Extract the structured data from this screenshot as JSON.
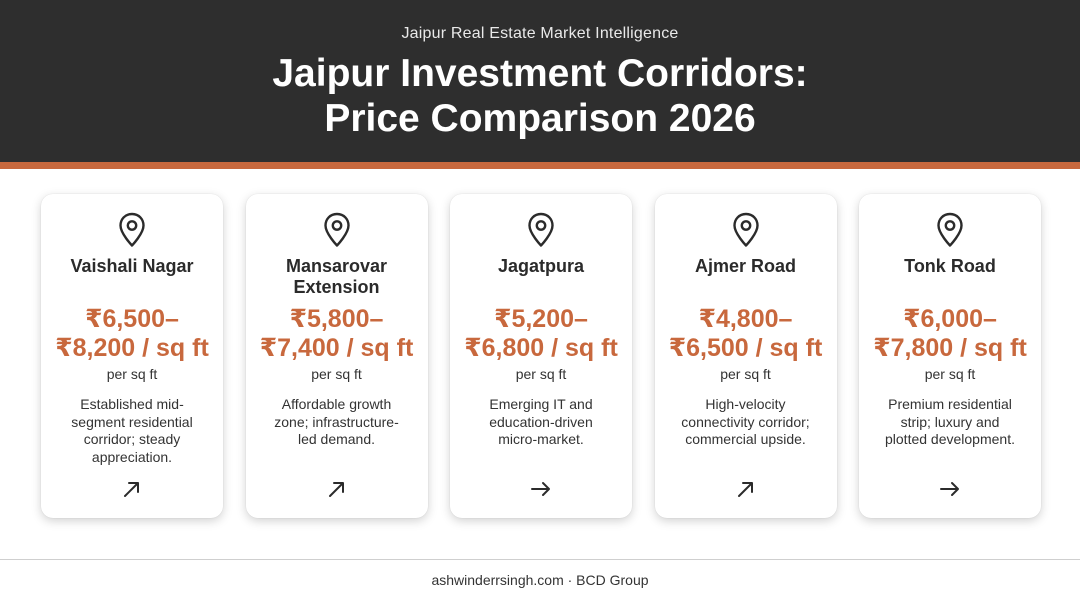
{
  "header": {
    "subtitle": "Jaipur Real Estate Market Intelligence",
    "title_line1": "Jaipur Investment Corridors:",
    "title_line2": "Price Comparison 2026"
  },
  "colors": {
    "header_bg": "#2e2e2e",
    "accent": "#c8683d",
    "price": "#c8683d"
  },
  "cards": [
    {
      "name_lines": [
        "Vaishali Nagar"
      ],
      "price_lines": [
        "₹6,500–",
        "₹8,200 / sq ft"
      ],
      "unit": "per sq ft",
      "desc_lines": [
        "Established mid-",
        "segment residential",
        "corridor; steady",
        "appreciation."
      ],
      "icon": "location-pin-icon",
      "trend_icon": "arrow-up-right-icon"
    },
    {
      "name_lines": [
        "Mansarovar",
        "Extension"
      ],
      "price_lines": [
        "₹5,800–",
        "₹7,400 / sq ft"
      ],
      "unit": "per sq ft",
      "desc_lines": [
        "Affordable growth",
        "zone; infrastructure-",
        "led demand."
      ],
      "icon": "location-pin-icon",
      "trend_icon": "arrow-up-right-icon"
    },
    {
      "name_lines": [
        "Jagatpura"
      ],
      "price_lines": [
        "₹5,200–",
        "₹6,800 / sq ft"
      ],
      "unit": "per sq ft",
      "desc_lines": [
        "Emerging IT and",
        "education-driven",
        "micro-market."
      ],
      "icon": "location-pin-icon",
      "trend_icon": "arrow-right-icon"
    },
    {
      "name_lines": [
        "Ajmer Road"
      ],
      "price_lines": [
        "₹4,800–",
        "₹6,500 / sq ft"
      ],
      "unit": "per sq ft",
      "desc_lines": [
        "High-velocity",
        "connectivity corridor;",
        "commercial upside."
      ],
      "icon": "location-pin-icon",
      "trend_icon": "arrow-up-right-icon"
    },
    {
      "name_lines": [
        "Tonk Road"
      ],
      "price_lines": [
        "₹6,000–",
        "₹7,800 / sq ft"
      ],
      "unit": "per sq ft",
      "desc_lines": [
        "Premium residential",
        "strip; luxury and",
        "plotted development."
      ],
      "icon": "location-pin-icon",
      "trend_icon": "arrow-right-icon"
    }
  ],
  "footer": {
    "text": "ashwinderrsingh.com · BCD Group"
  }
}
